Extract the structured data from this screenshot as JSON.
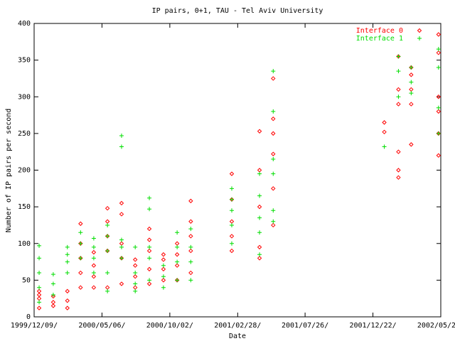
{
  "chart_data": {
    "type": "scatter",
    "title": "IP pairs, 0+1, TAU - Tel Aviv University",
    "x_label": "Date",
    "y_label": "Number of IP pairs per second",
    "xlim": [
      "1999/12/09",
      "2002/05/20"
    ],
    "xticks": [
      {
        "value": "1999/12/09",
        "label": "1999/12/09/"
      },
      {
        "value": "2000/05/06",
        "label": "2000/05/06/"
      },
      {
        "value": "2000/10/02",
        "label": "2000/10/02/"
      },
      {
        "value": "2001/02/28",
        "label": "2001/02/28/"
      },
      {
        "value": "2001/07/26",
        "label": "2001/07/26/"
      },
      {
        "value": "2001/12/22",
        "label": "2001/12/22/"
      },
      {
        "value": "2002/05/20",
        "label": "2002/05/20/"
      }
    ],
    "ylim": [
      0,
      400
    ],
    "yticks": [
      0,
      50,
      100,
      150,
      200,
      250,
      300,
      350,
      400
    ],
    "grid": false,
    "legend": "top-right",
    "series": [
      {
        "name": "Interface 0",
        "color": "#ff0000",
        "marker": "diamond",
        "x": [
          "1999/12/20",
          "1999/12/20",
          "1999/12/20",
          "1999/12/20",
          "2000/01/20",
          "2000/01/20",
          "2000/01/20",
          "2000/02/20",
          "2000/02/20",
          "2000/02/20",
          "2000/03/20",
          "2000/03/20",
          "2000/03/20",
          "2000/03/20",
          "2000/03/20",
          "2000/04/18",
          "2000/04/18",
          "2000/04/18",
          "2000/04/18",
          "2000/05/18",
          "2000/05/18",
          "2000/05/18",
          "2000/05/18",
          "2000/05/18",
          "2000/06/18",
          "2000/06/18",
          "2000/06/18",
          "2000/06/18",
          "2000/06/18",
          "2000/07/18",
          "2000/07/18",
          "2000/07/18",
          "2000/07/18",
          "2000/08/18",
          "2000/08/18",
          "2000/08/18",
          "2000/08/18",
          "2000/08/18",
          "2000/09/18",
          "2000/09/18",
          "2000/09/18",
          "2000/09/18",
          "2000/10/18",
          "2000/10/18",
          "2000/10/18",
          "2000/10/18",
          "2000/11/17",
          "2000/11/17",
          "2000/11/17",
          "2000/11/17",
          "2000/11/17",
          "2001/02/15",
          "2001/02/15",
          "2001/02/15",
          "2001/02/15",
          "2001/02/15",
          "2001/04/17",
          "2001/04/17",
          "2001/04/17",
          "2001/04/17",
          "2001/04/17",
          "2001/05/17",
          "2001/05/17",
          "2001/05/17",
          "2001/05/17",
          "2001/05/17",
          "2001/05/17",
          "2002/01/16",
          "2002/01/16",
          "2002/02/16",
          "2002/02/16",
          "2002/02/16",
          "2002/02/16",
          "2002/02/16",
          "2002/02/16",
          "2002/03/16",
          "2002/03/16",
          "2002/03/16",
          "2002/03/16",
          "2002/03/16",
          "2002/05/15",
          "2002/05/15",
          "2002/05/15",
          "2002/05/15",
          "2002/05/15",
          "2002/05/15"
        ],
        "values": [
          12,
          25,
          30,
          35,
          15,
          20,
          28,
          12,
          22,
          35,
          40,
          60,
          80,
          100,
          127,
          40,
          55,
          70,
          88,
          40,
          90,
          110,
          130,
          148,
          45,
          80,
          100,
          140,
          155,
          40,
          55,
          70,
          78,
          45,
          65,
          90,
          105,
          120,
          50,
          65,
          78,
          85,
          50,
          70,
          85,
          100,
          60,
          90,
          110,
          130,
          158,
          90,
          110,
          130,
          160,
          195,
          80,
          95,
          150,
          200,
          253,
          125,
          175,
          222,
          250,
          270,
          325,
          252,
          265,
          190,
          200,
          225,
          290,
          310,
          355,
          235,
          290,
          310,
          330,
          340,
          220,
          250,
          280,
          300,
          360,
          385
        ]
      },
      {
        "name": "Interface 1",
        "color": "#00dd00",
        "marker": "plus",
        "x": [
          "1999/12/20",
          "1999/12/20",
          "1999/12/20",
          "1999/12/20",
          "1999/12/20",
          "2000/01/20",
          "2000/01/20",
          "2000/01/20",
          "2000/02/20",
          "2000/02/20",
          "2000/02/20",
          "2000/02/20",
          "2000/03/20",
          "2000/03/20",
          "2000/03/20",
          "2000/04/18",
          "2000/04/18",
          "2000/04/18",
          "2000/04/18",
          "2000/05/18",
          "2000/05/18",
          "2000/05/18",
          "2000/05/18",
          "2000/05/18",
          "2000/06/18",
          "2000/06/18",
          "2000/06/18",
          "2000/06/18",
          "2000/06/18",
          "2000/07/18",
          "2000/07/18",
          "2000/07/18",
          "2000/07/18",
          "2000/08/18",
          "2000/08/18",
          "2000/08/18",
          "2000/08/18",
          "2000/08/18",
          "2000/09/18",
          "2000/09/18",
          "2000/09/18",
          "2000/10/18",
          "2000/10/18",
          "2000/10/18",
          "2000/10/18",
          "2000/11/17",
          "2000/11/17",
          "2000/11/17",
          "2000/11/17",
          "2001/02/15",
          "2001/02/15",
          "2001/02/15",
          "2001/02/15",
          "2001/02/15",
          "2001/04/17",
          "2001/04/17",
          "2001/04/17",
          "2001/04/17",
          "2001/04/17",
          "2001/05/17",
          "2001/05/17",
          "2001/05/17",
          "2001/05/17",
          "2001/05/17",
          "2001/05/17",
          "2002/01/16",
          "2002/02/16",
          "2002/02/16",
          "2002/02/16",
          "2002/03/16",
          "2002/03/16",
          "2002/03/16",
          "2002/05/15",
          "2002/05/15",
          "2002/05/15",
          "2002/05/15"
        ],
        "values": [
          20,
          40,
          60,
          80,
          97,
          30,
          45,
          58,
          60,
          75,
          85,
          95,
          80,
          100,
          115,
          60,
          80,
          95,
          107,
          35,
          60,
          90,
          110,
          125,
          80,
          95,
          105,
          232,
          247,
          35,
          45,
          60,
          95,
          50,
          80,
          95,
          147,
          162,
          40,
          55,
          70,
          50,
          75,
          95,
          115,
          50,
          75,
          95,
          120,
          100,
          125,
          145,
          160,
          175,
          85,
          115,
          135,
          165,
          195,
          130,
          145,
          195,
          215,
          280,
          335,
          232,
          300,
          335,
          355,
          305,
          320,
          340,
          250,
          285,
          340,
          365
        ]
      }
    ]
  }
}
